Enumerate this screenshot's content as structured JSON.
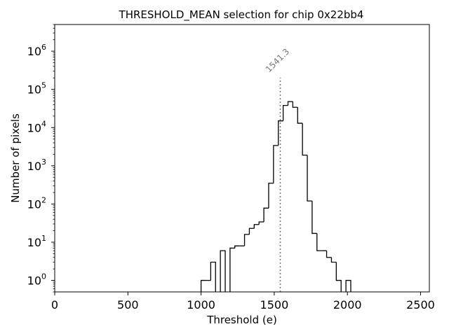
{
  "chart_data": {
    "type": "histogram",
    "title": "THRESHOLD_MEAN selection for chip 0x22bb4",
    "xlabel": "Threshold (e)",
    "ylabel": "Number of pixels",
    "xlim": [
      0,
      2560
    ],
    "ylim": [
      0.5,
      5000000
    ],
    "yscale": "log",
    "x_ticks": [
      {
        "value": 0,
        "label": "0"
      },
      {
        "value": 500,
        "label": "500"
      },
      {
        "value": 1000,
        "label": "1000"
      },
      {
        "value": 1500,
        "label": "1500"
      },
      {
        "value": 2000,
        "label": "2000"
      },
      {
        "value": 2500,
        "label": "2500"
      }
    ],
    "y_ticks": [
      {
        "value": 1,
        "base": "10",
        "exp": "0"
      },
      {
        "value": 10,
        "base": "10",
        "exp": "1"
      },
      {
        "value": 100,
        "base": "10",
        "exp": "2"
      },
      {
        "value": 1000,
        "base": "10",
        "exp": "3"
      },
      {
        "value": 10000,
        "base": "10",
        "exp": "4"
      },
      {
        "value": 100000,
        "base": "10",
        "exp": "5"
      },
      {
        "value": 1000000,
        "base": "10",
        "exp": "6"
      }
    ],
    "bin_edges": [
      1000,
      1033,
      1066,
      1099,
      1132,
      1165,
      1198,
      1231,
      1264,
      1297,
      1330,
      1363,
      1396,
      1429,
      1462,
      1495,
      1528,
      1561,
      1594,
      1627,
      1660,
      1693,
      1726,
      1759,
      1792,
      1825,
      1858,
      1891,
      1924,
      1957,
      1990,
      2023
    ],
    "counts": [
      1,
      1,
      3,
      0,
      6,
      0,
      7,
      8,
      8,
      16,
      23,
      29,
      34,
      78,
      350,
      3400,
      15000,
      38000,
      48000,
      34000,
      13000,
      1900,
      120,
      17,
      6,
      6,
      4,
      3,
      1,
      0,
      1
    ],
    "annotation": {
      "value": 1541.3,
      "label": "1541.3"
    }
  }
}
